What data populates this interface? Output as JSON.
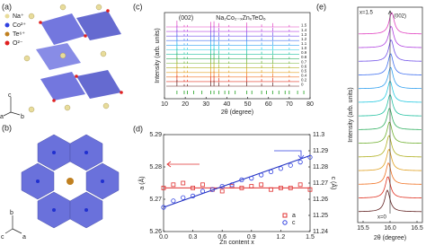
{
  "panels": {
    "a": {
      "label": "(a)",
      "legend": [
        "Na⁺",
        "Co²⁺",
        "Te⁶⁺",
        "O²⁻"
      ],
      "axes": [
        "c",
        "a",
        "b"
      ]
    },
    "b": {
      "label": "(b)",
      "axes": [
        "b",
        "c",
        "a"
      ]
    }
  },
  "chart_data": [
    {
      "type": "xrd-stack",
      "label": "(c)",
      "title": "Na₂Co₂₋ₓZnₓTeO₆",
      "annotation": "(002)",
      "x_label": "2θ (degree)",
      "y_label": "Intensity (arb. units)",
      "xlim": [
        10,
        80
      ],
      "xticks": [
        10,
        20,
        30,
        40,
        50,
        60,
        70,
        80
      ],
      "peaks": {
        "x": [
          16,
          19.5,
          21,
          32.3,
          33.8,
          36.2,
          41,
          49.6,
          56.7,
          62,
          70
        ],
        "values": [
          1,
          0.3,
          0.3,
          0.8,
          0.9,
          0.6,
          0.3,
          0.7,
          0.4,
          0.6,
          0.3
        ]
      },
      "reference": {
        "x": [
          16,
          19.5,
          21,
          24,
          28,
          32.3,
          33.8,
          36.2,
          39,
          41,
          44,
          49.6,
          52,
          56.7,
          59,
          62,
          65,
          68,
          70,
          74,
          77
        ]
      },
      "series": [
        {
          "name": "1.5",
          "color": "#e040c0"
        },
        {
          "name": "1.4",
          "color": "#b040e0"
        },
        {
          "name": "1.3",
          "color": "#7050e8"
        },
        {
          "name": "1.2",
          "color": "#4070f0"
        },
        {
          "name": "1.1",
          "color": "#30a0f0"
        },
        {
          "name": "1.0",
          "color": "#20c8e0"
        },
        {
          "name": "0.9",
          "color": "#20c0a0"
        },
        {
          "name": "0.8",
          "color": "#30b060"
        },
        {
          "name": "0.7",
          "color": "#70b030"
        },
        {
          "name": "0.6",
          "color": "#b0b020"
        },
        {
          "name": "0.5",
          "color": "#e0a020"
        },
        {
          "name": "0.4",
          "color": "#f07020"
        },
        {
          "name": "0.2",
          "color": "#e03020"
        },
        {
          "name": "0",
          "color": "#602020"
        }
      ]
    },
    {
      "type": "scatter",
      "label": "(d)",
      "x_label": "Zn content x",
      "y_label": "a (Å)",
      "y2_label": "c (Å)",
      "xlim": [
        0,
        1.5
      ],
      "xticks": [
        {
          "value": 0,
          "label": "0.0"
        },
        0.3,
        0.6,
        0.9,
        1.2,
        1.5
      ],
      "ylim": [
        5.26,
        5.29
      ],
      "yticks": [
        5.26,
        5.27,
        5.28,
        5.29
      ],
      "y2lim": [
        11.24,
        11.3
      ],
      "y2ticks": [
        11.24,
        11.25,
        11.26,
        11.27,
        11.28,
        11.29,
        11.3
      ],
      "x": [
        0,
        0.1,
        0.2,
        0.3,
        0.4,
        0.5,
        0.6,
        0.7,
        0.8,
        0.9,
        1,
        1.1,
        1.2,
        1.3,
        1.4,
        1.5
      ],
      "series": [
        {
          "name": "a",
          "color": "#e03030",
          "marker": "square",
          "values": [
            5.2735,
            5.2745,
            5.275,
            5.2735,
            5.2745,
            5.273,
            5.2725,
            5.274,
            5.2735,
            5.274,
            5.2745,
            5.273,
            5.2735,
            5.2735,
            5.2745,
            5.273
          ]
        },
        {
          "name": "c",
          "color": "#3040e0",
          "marker": "circle",
          "axis": "y2",
          "values": [
            11.255,
            11.259,
            11.261,
            11.262,
            11.265,
            11.266,
            11.268,
            11.269,
            11.272,
            11.273,
            11.275,
            11.277,
            11.279,
            11.281,
            11.283,
            11.286
          ]
        }
      ],
      "fits": [
        {
          "color": "#e03030",
          "x": [
            0,
            1.5
          ],
          "values": [
            5.2735,
            5.2735
          ]
        },
        {
          "color": "#2030c0",
          "axis": "y2",
          "x": [
            0,
            1.5
          ],
          "values": [
            11.255,
            11.287
          ]
        }
      ]
    },
    {
      "type": "peak-stack",
      "label": "(e)",
      "annotation": "(002)",
      "top_label": "x=1.5",
      "bottom_label": "x=0",
      "x_label": "2θ (degree)",
      "y_label": "Intensity (arb. units)",
      "xlim": [
        15.4,
        16.6
      ],
      "xticks": [
        15.5,
        {
          "value": 16,
          "label": "16.0"
        },
        16.5
      ],
      "centers": [
        16.03,
        16.02,
        16.02,
        16.01,
        16.01,
        16,
        16,
        15.99,
        15.99,
        15.98,
        15.98,
        15.97,
        15.96,
        15.95
      ]
    }
  ]
}
